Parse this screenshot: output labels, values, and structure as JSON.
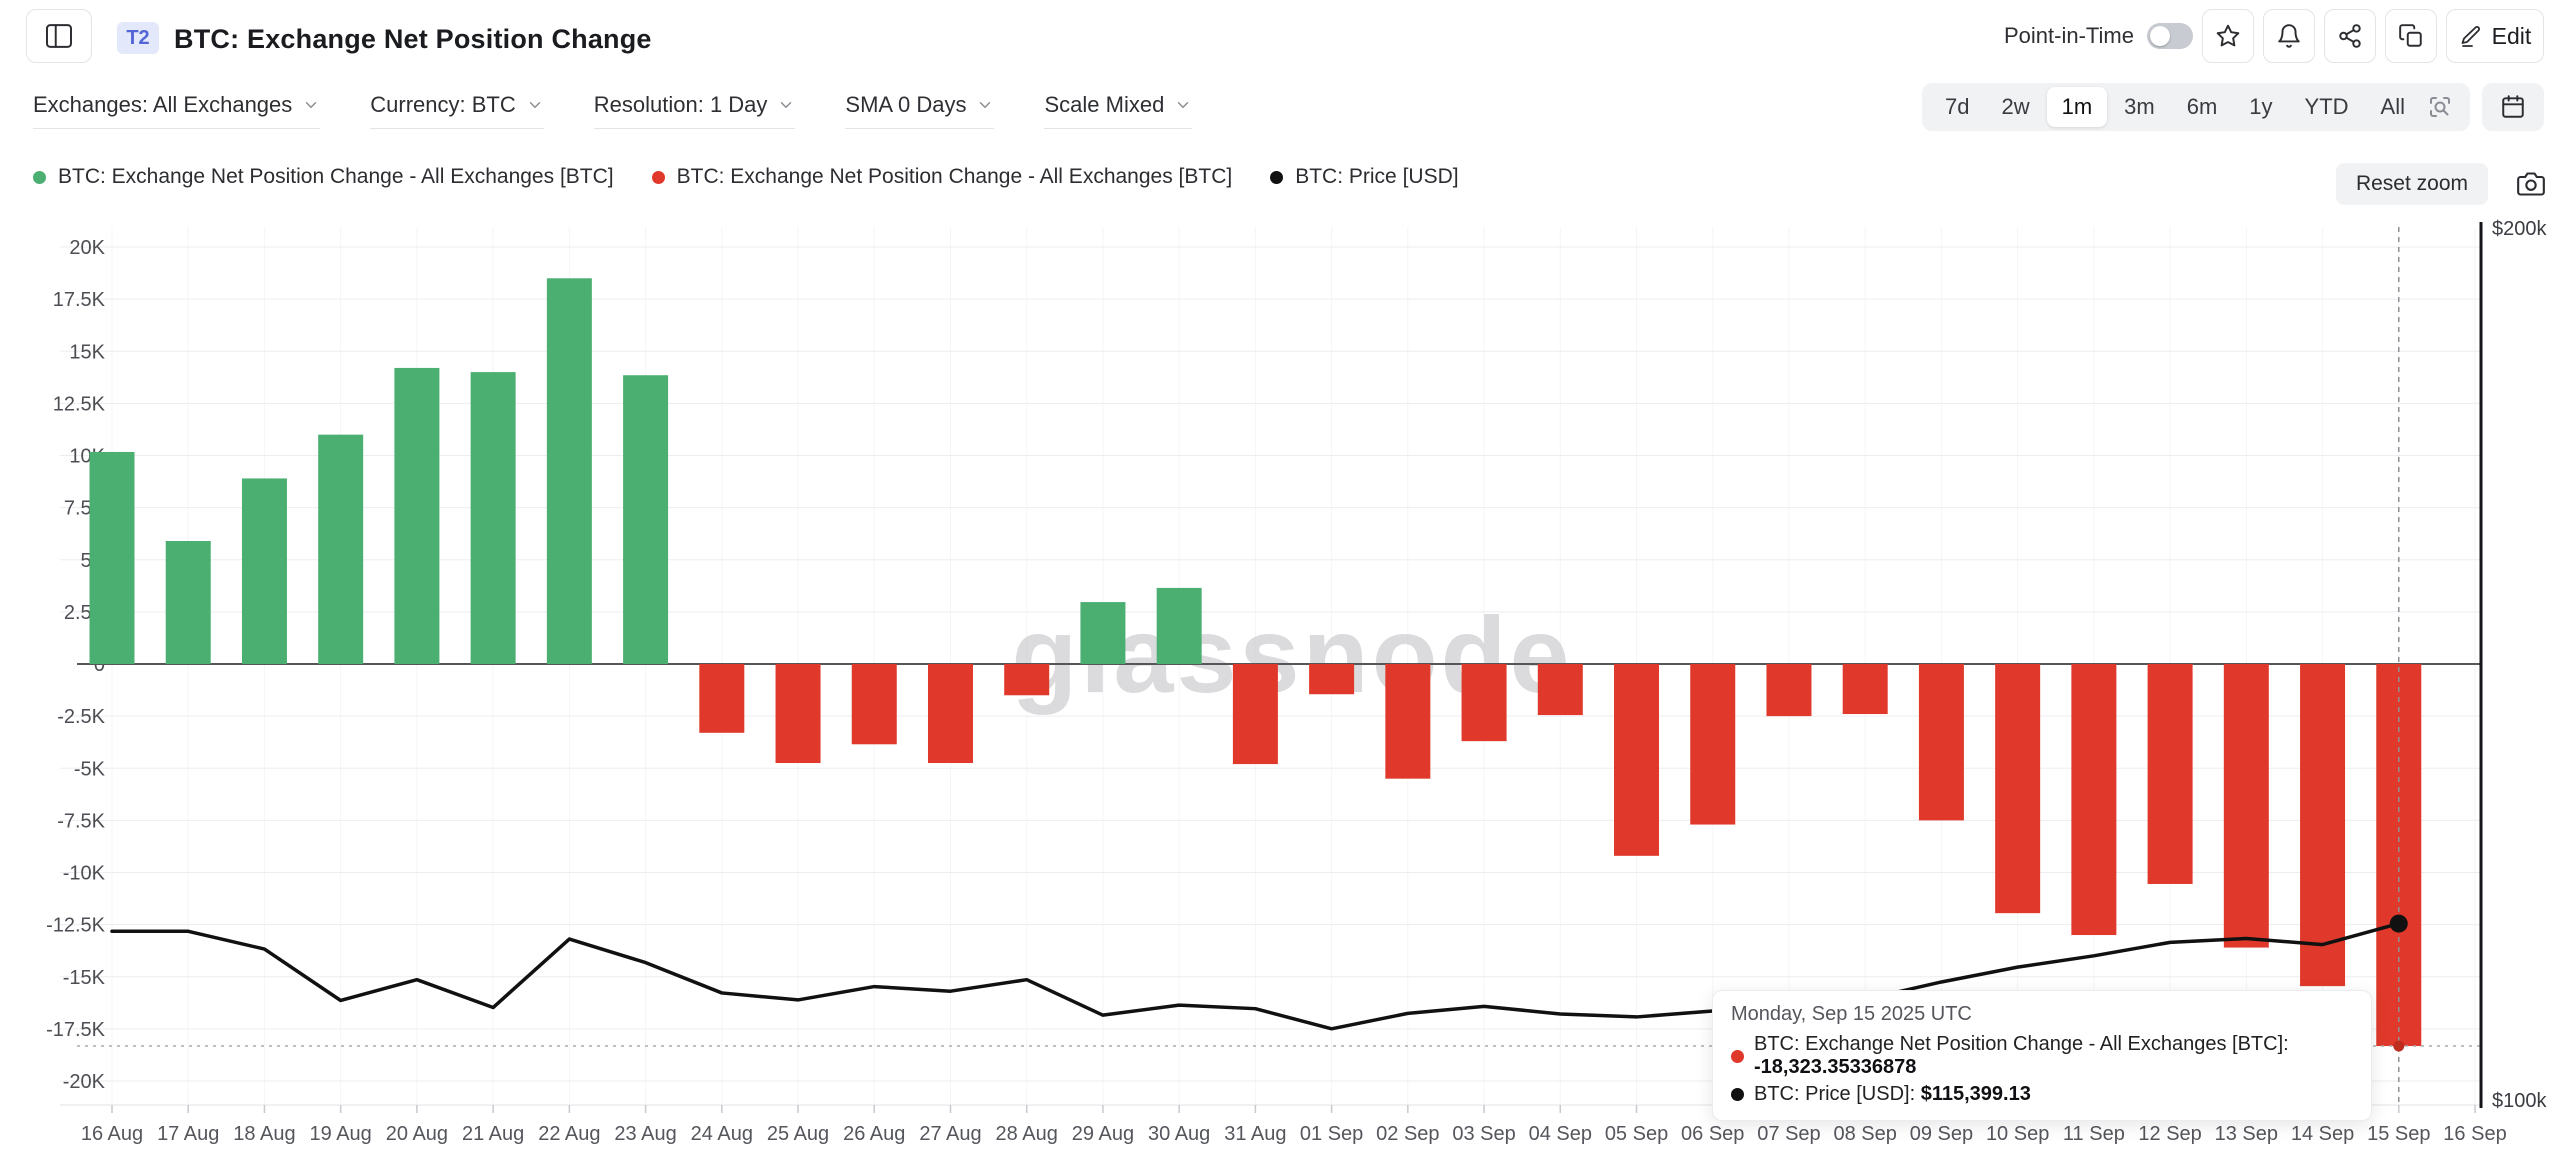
{
  "header": {
    "badge": "T2",
    "title": "BTC: Exchange Net Position Change",
    "point_in_time_label": "Point-in-Time",
    "point_in_time_on": false,
    "edit_label": "Edit"
  },
  "toolbar": {
    "filters": [
      {
        "id": "exchanges",
        "label": "Exchanges: All Exchanges"
      },
      {
        "id": "currency",
        "label": "Currency: BTC"
      },
      {
        "id": "resolution",
        "label": "Resolution: 1 Day"
      },
      {
        "id": "sma",
        "label": "SMA 0 Days"
      },
      {
        "id": "scale",
        "label": "Scale Mixed"
      }
    ],
    "ranges": [
      "7d",
      "2w",
      "1m",
      "3m",
      "6m",
      "1y",
      "YTD",
      "All"
    ],
    "active_range": "1m"
  },
  "legend": [
    {
      "label": "BTC: Exchange Net Position Change - All Exchanges [BTC]",
      "color": "#4caf72"
    },
    {
      "label": "BTC: Exchange Net Position Change - All Exchanges [BTC]",
      "color": "#e0392b"
    },
    {
      "label": "BTC: Price [USD]",
      "color": "#111111"
    }
  ],
  "reset_zoom_label": "Reset zoom",
  "watermark": "glassnode",
  "tooltip": {
    "date": "Monday, Sep 15 2025 UTC",
    "rows": [
      {
        "color": "#e0392b",
        "label": "BTC: Exchange Net Position Change - All Exchanges [BTC]:",
        "value": "-18,323.35336878"
      },
      {
        "color": "#111111",
        "label": "BTC: Price [USD]:",
        "value": "$115,399.13"
      }
    ]
  },
  "chart_data": {
    "type": "bar",
    "title": "BTC: Exchange Net Position Change",
    "categories": [
      "16 Aug",
      "17 Aug",
      "18 Aug",
      "19 Aug",
      "20 Aug",
      "21 Aug",
      "22 Aug",
      "23 Aug",
      "24 Aug",
      "25 Aug",
      "26 Aug",
      "27 Aug",
      "28 Aug",
      "29 Aug",
      "30 Aug",
      "31 Aug",
      "01 Sep",
      "02 Sep",
      "03 Sep",
      "04 Sep",
      "05 Sep",
      "06 Sep",
      "07 Sep",
      "08 Sep",
      "09 Sep",
      "10 Sep",
      "11 Sep",
      "12 Sep",
      "13 Sep",
      "14 Sep",
      "15 Sep",
      "16 Sep"
    ],
    "series": [
      {
        "name": "BTC: Exchange Net Position Change - All Exchanges [BTC]",
        "type": "bar",
        "axis": "left",
        "positive_color": "#4caf72",
        "negative_color": "#e0392b",
        "values": [
          10170,
          5900,
          8900,
          11000,
          14200,
          14000,
          18500,
          13850,
          -3300,
          -4750,
          -3850,
          -4750,
          -1500,
          2970,
          3650,
          -4800,
          -1450,
          -5500,
          -3700,
          -2450,
          -9200,
          -7700,
          -2500,
          -2400,
          -7500,
          -11950,
          -13000,
          -10550,
          -13600,
          -15450,
          -18323.35336878
        ]
      },
      {
        "name": "BTC: Price [USD]",
        "type": "line",
        "axis": "right",
        "color": "#111111",
        "values": [
          114700,
          114700,
          113100,
          108600,
          110400,
          108000,
          114000,
          111900,
          109250,
          108650,
          109800,
          109400,
          110400,
          107350,
          108200,
          107900,
          106200,
          107500,
          108100,
          107450,
          107200,
          107700,
          107900,
          108700,
          110200,
          111500,
          112500,
          113700,
          114050,
          113500,
          115399.13
        ]
      }
    ],
    "left_axis": {
      "unit": "BTC",
      "tick_labels": [
        "20K",
        "17.5K",
        "15K",
        "12.5K",
        "10K",
        "7.5K",
        "5K",
        "2.5K",
        "0",
        "-2.5K",
        "-5K",
        "-7.5K",
        "-10K",
        "-12.5K",
        "-15K",
        "-17.5K",
        "-20K"
      ],
      "tick_values": [
        20000,
        17500,
        15000,
        12500,
        10000,
        7500,
        5000,
        2500,
        0,
        -2500,
        -5000,
        -7500,
        -10000,
        -12500,
        -15000,
        -17500,
        -20000
      ]
    },
    "right_axis": {
      "labels": [
        "$200k",
        "$100k"
      ],
      "range": [
        100000,
        200000
      ],
      "scale": "log"
    },
    "hover": {
      "category": "15 Sep",
      "index": 30,
      "net_position_change": -18323.35336878,
      "price_usd": 115399.13
    },
    "grid": true,
    "legend_position": "top-left"
  }
}
